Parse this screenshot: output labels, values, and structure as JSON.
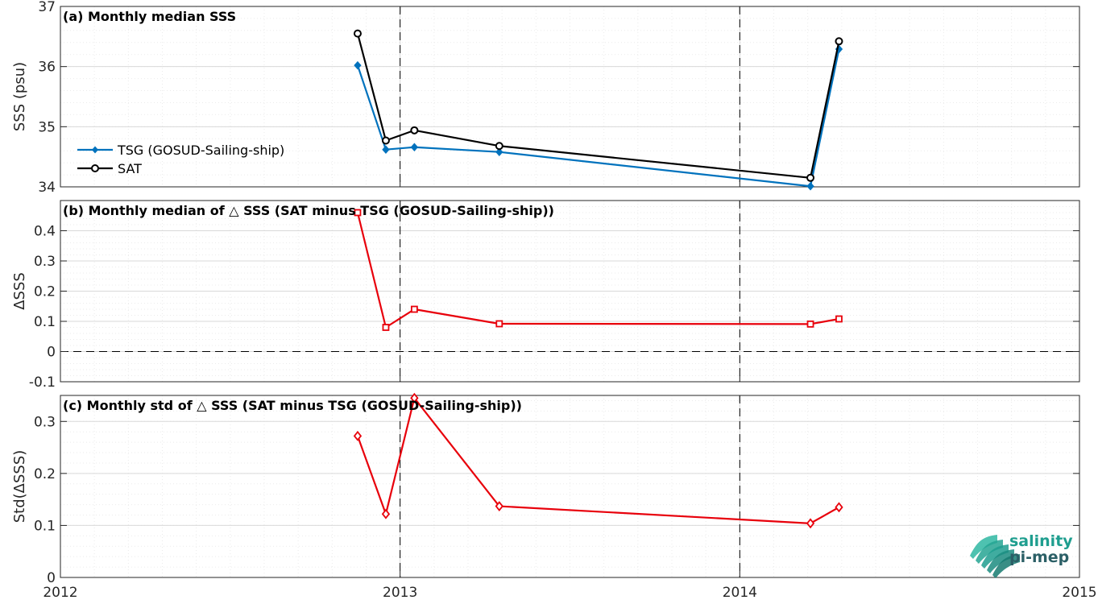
{
  "colors": {
    "tsg": "#0072BD",
    "sat": "#000000",
    "delta": "#E8000B",
    "axis": "#262626",
    "grid_major": "#d9d9d9",
    "grid_minor": "#ebebeb",
    "logo_teal": "#1f9e8f"
  },
  "logo": {
    "line1": "salinity",
    "line2": "pi-mep",
    "icon": "wave-stack-icon"
  },
  "x_axis": {
    "min": 2012,
    "max": 2015,
    "tick_labels": [
      "2012",
      "2013",
      "2014",
      "2015"
    ],
    "vlines": [
      2013,
      2014
    ]
  },
  "chart_data": [
    {
      "type": "line",
      "title": "(a) Monthly median SSS",
      "ylabel": "SSS (psu)",
      "ylim": [
        34,
        37
      ],
      "yticks": [
        34,
        35,
        36,
        37
      ],
      "ytick_labels": [
        "34",
        "35",
        "36",
        "37"
      ],
      "grid": true,
      "legend_position": "left",
      "series": [
        {
          "name": "TSG (GOSUD-Sailing-ship)",
          "marker": "diamond-filled",
          "x": [
            2012.875,
            2012.958,
            2013.042,
            2013.292,
            2014.208,
            2014.292
          ],
          "y": [
            36.02,
            34.62,
            34.66,
            34.58,
            34.01,
            36.29
          ]
        },
        {
          "name": "SAT",
          "marker": "circle-open",
          "x": [
            2012.875,
            2012.958,
            2013.042,
            2013.292,
            2014.208,
            2014.292
          ],
          "y": [
            36.55,
            34.77,
            34.94,
            34.68,
            34.15,
            36.42
          ]
        }
      ]
    },
    {
      "type": "line",
      "title": "(b) Monthly median of △ SSS (SAT minus TSG (GOSUD-Sailing-ship))",
      "ylabel": "ΔSSS",
      "ylim": [
        -0.1,
        0.5
      ],
      "yticks": [
        -0.1,
        0,
        0.1,
        0.2,
        0.3,
        0.4
      ],
      "ytick_labels": [
        "-0.1",
        "0",
        "0.1",
        "0.2",
        "0.3",
        "0.4"
      ],
      "grid": true,
      "zero_line": true,
      "series": [
        {
          "marker": "square-open",
          "x": [
            2012.875,
            2012.958,
            2013.042,
            2013.292,
            2014.208,
            2014.292
          ],
          "y": [
            0.46,
            0.08,
            0.14,
            0.092,
            0.091,
            0.108
          ]
        }
      ]
    },
    {
      "type": "line",
      "title": "(c) Monthly std of △ SSS (SAT minus TSG (GOSUD-Sailing-ship))",
      "ylabel": "Std(ΔSSS)",
      "ylim": [
        0,
        0.35
      ],
      "yticks": [
        0,
        0.1,
        0.2,
        0.3
      ],
      "ytick_labels": [
        "0",
        "0.1",
        "0.2",
        "0.3"
      ],
      "grid": true,
      "series": [
        {
          "marker": "diamond-open",
          "x": [
            2012.875,
            2012.958,
            2013.042,
            2013.292,
            2014.208,
            2014.292
          ],
          "y": [
            0.272,
            0.122,
            0.345,
            0.137,
            0.104,
            0.135
          ]
        }
      ]
    }
  ]
}
